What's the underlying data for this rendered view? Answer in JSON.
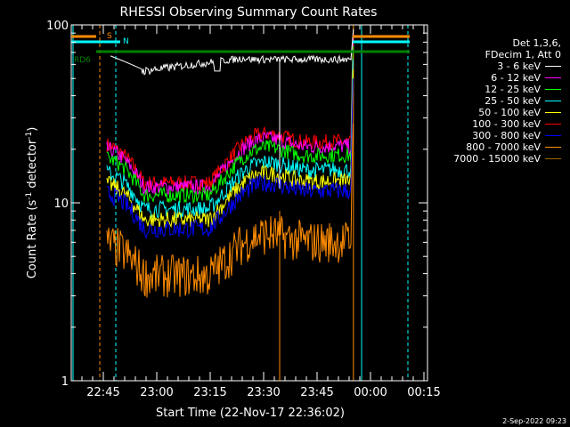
{
  "chart_data": {
    "type": "line",
    "title": "RHESSI Observing Summary Count Rates",
    "xlabel": "Start Time (22-Nov-17 22:36:02)",
    "ylabel": "Count Rate (s",
    "ylabel_sup1": "-1",
    "ylabel_mid": " detector",
    "ylabel_sup2": "-1",
    "ylabel_end": ")",
    "yscale": "log",
    "ylim": [
      1,
      100
    ],
    "yticks": [
      {
        "value": 1,
        "label": "1"
      },
      {
        "value": 10,
        "label": "10"
      },
      {
        "value": 100,
        "label": "100"
      }
    ],
    "xlim": [
      0,
      100
    ],
    "xticks": [
      {
        "value": 9,
        "label": "22:45"
      },
      {
        "value": 24,
        "label": "23:00"
      },
      {
        "value": 39,
        "label": "23:15"
      },
      {
        "value": 54,
        "label": "23:30"
      },
      {
        "value": 69,
        "label": "23:45"
      },
      {
        "value": 84,
        "label": "00:00"
      },
      {
        "value": 99,
        "label": "00:15"
      }
    ],
    "legend_header": [
      "Det 1,3,6,",
      "FDecim 1, Att 0"
    ],
    "legend_position": "right",
    "series": [
      {
        "name": "3 - 6 keV",
        "color": "#ffffff"
      },
      {
        "name": "6 - 12 keV",
        "color": "#ff00ff"
      },
      {
        "name": "12 - 25 keV",
        "color": "#00ff00"
      },
      {
        "name": "25 - 50 keV",
        "color": "#00ffff"
      },
      {
        "name": "50 - 100 keV",
        "color": "#ffff00"
      },
      {
        "name": "100 - 300 keV",
        "color": "#ff0000"
      },
      {
        "name": "300 - 800 keV",
        "color": "#0000ff"
      },
      {
        "name": "800 - 7000 keV",
        "color": "#ff8c00"
      },
      {
        "name": "7000 - 15000 keV",
        "color": "#996600"
      }
    ],
    "flags": [
      {
        "label": "S",
        "color": "#ff8c00"
      },
      {
        "label": "N",
        "color": "#00ffff"
      },
      {
        "label": "RD6",
        "color": "#008000"
      }
    ]
  },
  "timestamp": "2-Sep-2022 09:23",
  "colors": {
    "background": "#000000",
    "axes": "#ffffff"
  }
}
